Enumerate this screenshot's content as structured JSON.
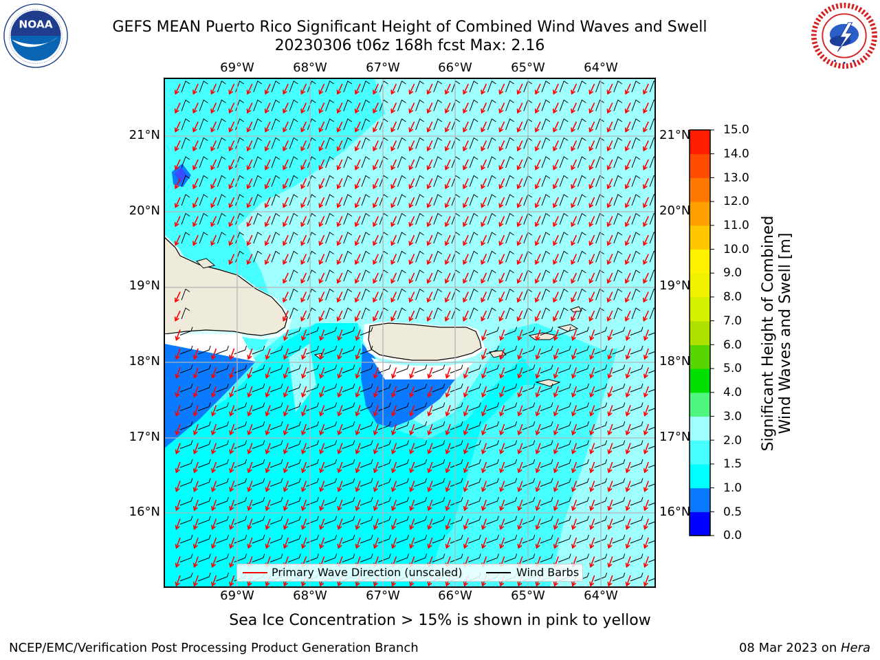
{
  "title": {
    "line1": "GEFS MEAN Puerto Rico Significant Height of Combined Wind Waves and Swell",
    "line2": "20230306 t06z 168h fcst   Max: 2.16"
  },
  "logos": {
    "left": "NOAA",
    "right": "NATIONAL WEATHER SERVICE"
  },
  "map": {
    "lon_labels": [
      "69°W",
      "68°W",
      "67°W",
      "66°W",
      "65°W",
      "64°W"
    ],
    "lat_labels": [
      "21°N",
      "20°N",
      "19°N",
      "18°N",
      "17°N",
      "16°N"
    ],
    "extent": {
      "lon": [
        -70.0,
        -63.25
      ],
      "lat": [
        15.0,
        21.75
      ]
    },
    "land_color": "#eeebdb",
    "grid_color": "#b4b4b4"
  },
  "colorbar": {
    "label_line1": "Significant Height of Combined",
    "label_line2": "Wind Waves and Swell [m]",
    "ticks": [
      "0.0",
      "0.5",
      "1.0",
      "1.5",
      "2.0",
      "3.0",
      "4.0",
      "5.0",
      "6.0",
      "7.0",
      "8.0",
      "9.0",
      "10.0",
      "11.0",
      "12.0",
      "13.0",
      "14.0",
      "15.0"
    ],
    "colors": [
      "#0000ff",
      "#0a7aff",
      "#00ffff",
      "#48ffff",
      "#9efffe",
      "#50f580",
      "#00e000",
      "#5ad400",
      "#afe100",
      "#d2f000",
      "#f0f000",
      "#fff200",
      "#ffc800",
      "#ffa000",
      "#ff7800",
      "#ff4c00",
      "#ff1f00"
    ]
  },
  "legend": {
    "wave_label": "Primary Wave Direction (unscaled)",
    "wave_color": "#ff0000",
    "wind_label": "Wind Barbs",
    "wind_color": "#000000"
  },
  "ice_note": "Sea Ice Concentration > 15% is shown in pink to yellow",
  "footer": {
    "left": "NCEP/EMC/Verification Post Processing Product Generation Branch",
    "right_date": "08 Mar 2023 on ",
    "right_machine": "Hera"
  }
}
